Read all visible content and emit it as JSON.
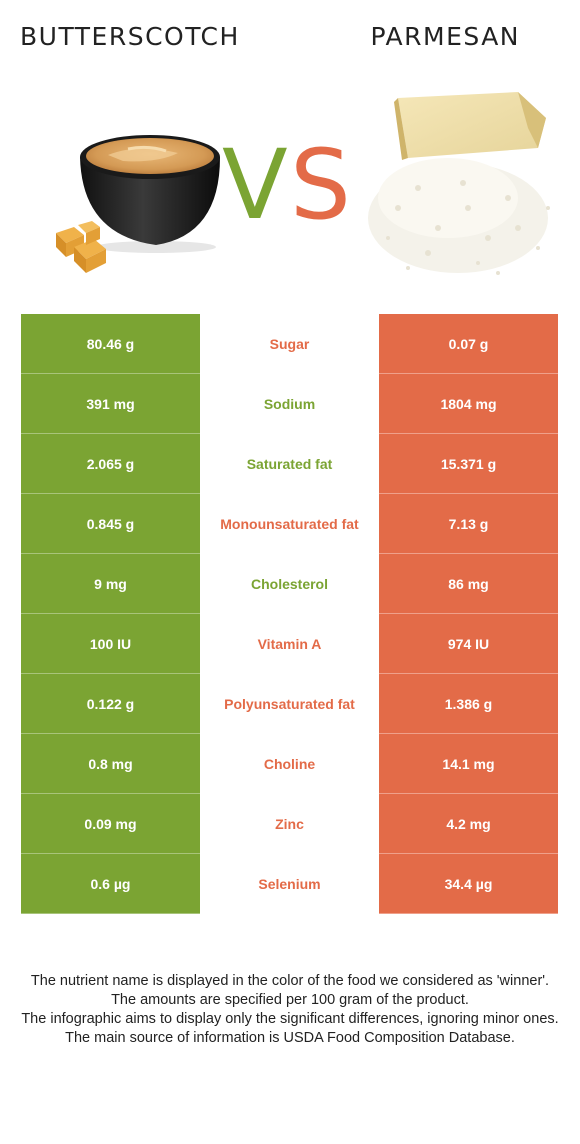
{
  "header": {
    "left_title": "BUTTERSCOTCH",
    "right_title": "PARMESAN",
    "vs_v": "V",
    "vs_s": "S"
  },
  "colors": {
    "left": "#7ba433",
    "right": "#e36b48"
  },
  "rows": [
    {
      "left": "80.46 g",
      "nutrient": "Sugar",
      "right": "0.07 g",
      "winner": "right"
    },
    {
      "left": "391 mg",
      "nutrient": "Sodium",
      "right": "1804 mg",
      "winner": "left"
    },
    {
      "left": "2.065 g",
      "nutrient": "Saturated fat",
      "right": "15.371 g",
      "winner": "left"
    },
    {
      "left": "0.845 g",
      "nutrient": "Monounsaturated fat",
      "right": "7.13 g",
      "winner": "right"
    },
    {
      "left": "9 mg",
      "nutrient": "Cholesterol",
      "right": "86 mg",
      "winner": "left"
    },
    {
      "left": "100 IU",
      "nutrient": "Vitamin A",
      "right": "974 IU",
      "winner": "right"
    },
    {
      "left": "0.122 g",
      "nutrient": "Polyunsaturated fat",
      "right": "1.386 g",
      "winner": "right"
    },
    {
      "left": "0.8 mg",
      "nutrient": "Choline",
      "right": "14.1 mg",
      "winner": "right"
    },
    {
      "left": "0.09 mg",
      "nutrient": "Zinc",
      "right": "4.2 mg",
      "winner": "right"
    },
    {
      "left": "0.6 µg",
      "nutrient": "Selenium",
      "right": "34.4 µg",
      "winner": "right"
    }
  ],
  "footer": {
    "line1": "The nutrient name is displayed in the color of the food we considered as 'winner'.",
    "line2": "The amounts are specified per 100 gram of the product.",
    "line3": "The infographic aims to display only the significant differences, ignoring minor ones.",
    "line4": "The main source of information is USDA Food Composition Database."
  }
}
